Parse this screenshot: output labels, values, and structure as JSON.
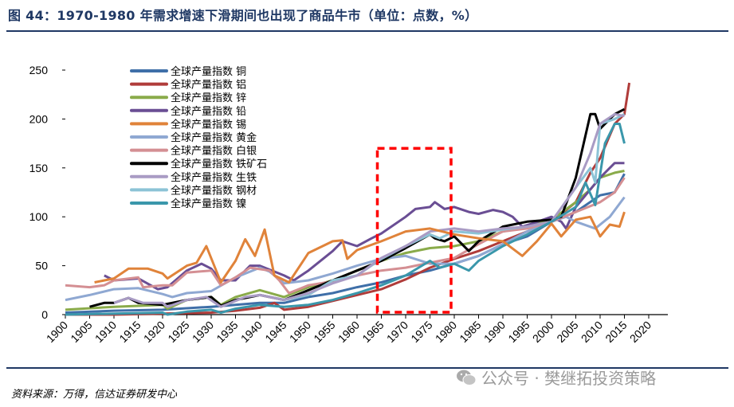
{
  "title": "图 44：1970-1980 年需求增速下滑期间也出现了商品牛市（单位：点数，%）",
  "source": "资料来源：万得，信达证券研发中心",
  "watermark": "公众号 · 樊继拓投资策略",
  "chart_data": {
    "type": "line",
    "title": "",
    "xlabel": "",
    "ylabel": "",
    "xlim": [
      1900,
      2020
    ],
    "ylim": [
      0,
      250
    ],
    "x_ticks": [
      "1900",
      "1905",
      "1910",
      "1915",
      "1920",
      "1925",
      "1930",
      "1935",
      "1940",
      "1945",
      "1950",
      "1955",
      "1960",
      "1965",
      "1970",
      "1975",
      "1980",
      "1985",
      "1990",
      "1995",
      "2000",
      "2005",
      "2010",
      "2015",
      "2020"
    ],
    "y_ticks": [
      "0",
      "50",
      "100",
      "150",
      "200",
      "250"
    ],
    "grid": false,
    "legend_position": "top-left",
    "highlight_box": {
      "x_range": [
        1965,
        1980
      ],
      "y_range": [
        0,
        170
      ],
      "color": "#ff0000",
      "style": "dashed"
    },
    "series": [
      {
        "name": "全球产量指数  铜",
        "color": "#3f6fa8",
        "x": [
          1900,
          1910,
          1920,
          1930,
          1940,
          1945,
          1950,
          1955,
          1960,
          1965,
          1970,
          1975,
          1980,
          1985,
          1990,
          1995,
          2000,
          2005,
          2010,
          2013,
          2015
        ],
        "y": [
          2,
          4,
          5,
          8,
          12,
          12,
          18,
          22,
          28,
          33,
          40,
          45,
          52,
          60,
          72,
          80,
          95,
          105,
          122,
          125,
          144
        ]
      },
      {
        "name": "全球产量指数  铝",
        "color": "#b03c3a",
        "x": [
          1900,
          1910,
          1920,
          1930,
          1935,
          1940,
          1943,
          1945,
          1950,
          1955,
          1960,
          1965,
          1970,
          1975,
          1980,
          1985,
          1990,
          1995,
          2000,
          2005,
          2008,
          2010,
          2013,
          2015,
          2016
        ],
        "y": [
          0,
          0,
          1,
          2,
          4,
          7,
          12,
          5,
          8,
          14,
          20,
          26,
          36,
          48,
          57,
          65,
          75,
          85,
          95,
          115,
          145,
          160,
          195,
          205,
          237
        ]
      },
      {
        "name": "全球产量指数  锌",
        "color": "#8aab4a",
        "x": [
          1900,
          1910,
          1920,
          1921,
          1925,
          1930,
          1932,
          1935,
          1940,
          1945,
          1950,
          1955,
          1960,
          1965,
          1970,
          1975,
          1980,
          1985,
          1990,
          1995,
          2000,
          2005,
          2008,
          2010,
          2013,
          2015
        ],
        "y": [
          5,
          8,
          10,
          6,
          15,
          18,
          10,
          18,
          25,
          18,
          28,
          35,
          45,
          55,
          63,
          68,
          70,
          75,
          85,
          90,
          97,
          115,
          128,
          140,
          145,
          147
        ]
      },
      {
        "name": "全球产量指数  铅",
        "color": "#6a4e94",
        "x": [
          1908,
          1910,
          1915,
          1919,
          1921,
          1925,
          1928,
          1930,
          1932,
          1935,
          1938,
          1940,
          1945,
          1947,
          1950,
          1955,
          1957,
          1960,
          1963,
          1965,
          1970,
          1972,
          1975,
          1976,
          1978,
          1980,
          1983,
          1985,
          1988,
          1990,
          1992,
          1994,
          1996,
          2000,
          2002,
          2003,
          2005,
          2010,
          2013,
          2015
        ],
        "y": [
          40,
          35,
          37,
          26,
          28,
          45,
          52,
          47,
          35,
          35,
          50,
          50,
          40,
          35,
          45,
          65,
          75,
          70,
          78,
          83,
          100,
          108,
          110,
          115,
          108,
          110,
          105,
          103,
          107,
          105,
          100,
          90,
          93,
          100,
          95,
          88,
          110,
          140,
          155,
          155
        ]
      },
      {
        "name": "全球产量指数  锡",
        "color": "#e0833a",
        "x": [
          1906,
          1910,
          1913,
          1917,
          1920,
          1921,
          1925,
          1927,
          1929,
          1932,
          1935,
          1937,
          1939,
          1941,
          1943,
          1946,
          1950,
          1955,
          1957,
          1958,
          1960,
          1965,
          1970,
          1975,
          1980,
          1985,
          1990,
          1994,
          1997,
          2000,
          2002,
          2005,
          2008,
          2010,
          2012,
          2014,
          2015
        ],
        "y": [
          33,
          37,
          47,
          47,
          42,
          37,
          50,
          53,
          70,
          33,
          55,
          77,
          60,
          87,
          40,
          33,
          63,
          75,
          76,
          57,
          66,
          75,
          85,
          88,
          82,
          78,
          75,
          60,
          75,
          93,
          80,
          97,
          100,
          80,
          92,
          90,
          105
        ]
      },
      {
        "name": "全球产量指数  黄金",
        "color": "#8fa8d2",
        "x": [
          1900,
          1905,
          1910,
          1915,
          1920,
          1922,
          1925,
          1930,
          1935,
          1940,
          1942,
          1945,
          1950,
          1955,
          1960,
          1965,
          1970,
          1975,
          1980,
          1985,
          1990,
          1995,
          2000,
          2003,
          2005,
          2009,
          2012,
          2015
        ],
        "y": [
          15,
          20,
          26,
          27,
          21,
          18,
          22,
          24,
          38,
          48,
          44,
          32,
          35,
          42,
          50,
          57,
          60,
          52,
          52,
          60,
          72,
          85,
          95,
          100,
          95,
          88,
          100,
          120
        ]
      },
      {
        "name": "全球产量指数  白银",
        "color": "#d48f93",
        "x": [
          1900,
          1905,
          1908,
          1910,
          1915,
          1916,
          1920,
          1922,
          1925,
          1930,
          1932,
          1935,
          1938,
          1942,
          1944,
          1946,
          1950,
          1955,
          1960,
          1965,
          1970,
          1975,
          1980,
          1985,
          1990,
          1995,
          2000,
          2005,
          2010,
          2013,
          2015
        ],
        "y": [
          30,
          28,
          30,
          35,
          38,
          28,
          30,
          30,
          43,
          45,
          30,
          38,
          48,
          45,
          35,
          22,
          30,
          34,
          40,
          45,
          48,
          53,
          58,
          72,
          85,
          88,
          95,
          105,
          115,
          125,
          140
        ]
      },
      {
        "name": "全球产量指数  铁矿石",
        "color": "#000000",
        "x": [
          1905,
          1908,
          1910,
          1913,
          1915,
          1920,
          1925,
          1930,
          1932,
          1935,
          1940,
          1945,
          1950,
          1955,
          1960,
          1965,
          1970,
          1975,
          1976,
          1978,
          1980,
          1983,
          1985,
          1990,
          1995,
          2000,
          2002,
          2005,
          2008,
          2009,
          2010,
          2013,
          2015
        ],
        "y": [
          8,
          12,
          12,
          17,
          12,
          10,
          15,
          18,
          9,
          15,
          20,
          15,
          25,
          35,
          45,
          55,
          68,
          82,
          78,
          75,
          80,
          65,
          75,
          90,
          95,
          97,
          100,
          140,
          205,
          205,
          190,
          205,
          210
        ]
      },
      {
        "name": "全球产量指数  生铁",
        "color": "#a99bc4",
        "x": [
          1910,
          1913,
          1916,
          1920,
          1921,
          1925,
          1929,
          1932,
          1935,
          1937,
          1940,
          1945,
          1950,
          1955,
          1960,
          1965,
          1970,
          1975,
          1980,
          1985,
          1990,
          1995,
          2000,
          2005,
          2008,
          2010,
          2013,
          2015
        ],
        "y": [
          12,
          17,
          12,
          12,
          8,
          15,
          18,
          8,
          14,
          18,
          20,
          15,
          22,
          32,
          40,
          58,
          70,
          85,
          88,
          85,
          88,
          90,
          95,
          130,
          165,
          195,
          205,
          203
        ]
      },
      {
        "name": "全球产量指数  钢材",
        "color": "#8cc3d6",
        "x": [
          1945,
          1950,
          1955,
          1960,
          1965,
          1970,
          1975,
          1977,
          1980,
          1985,
          1990,
          1995,
          2000,
          2005,
          2008,
          2009,
          2010,
          2013,
          2015
        ],
        "y": [
          15,
          20,
          35,
          40,
          57,
          70,
          82,
          78,
          85,
          83,
          87,
          90,
          95,
          130,
          150,
          135,
          195,
          200,
          205
        ]
      },
      {
        "name": "全球产量指数  镍",
        "color": "#3a97ab",
        "x": [
          1900,
          1920,
          1921,
          1925,
          1930,
          1932,
          1935,
          1940,
          1945,
          1950,
          1955,
          1960,
          1965,
          1970,
          1975,
          1977,
          1980,
          1983,
          1985,
          1990,
          1995,
          2000,
          2005,
          2007,
          2009,
          2011,
          2013,
          2014,
          2015
        ],
        "y": [
          0,
          2,
          0,
          3,
          5,
          2,
          6,
          10,
          8,
          10,
          15,
          22,
          30,
          40,
          55,
          48,
          52,
          45,
          55,
          70,
          82,
          95,
          110,
          135,
          112,
          175,
          195,
          195,
          175
        ]
      }
    ]
  }
}
